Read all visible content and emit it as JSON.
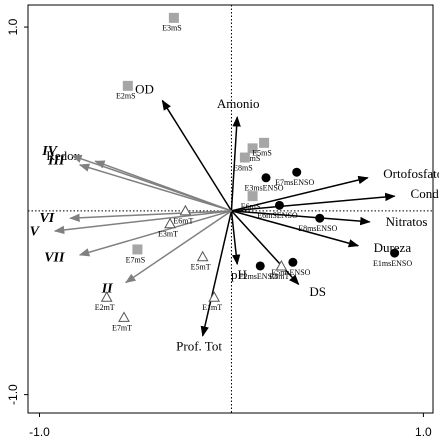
{
  "chart_data": {
    "type": "biplot",
    "xlim": [
      -1.06,
      1.05
    ],
    "ylim": [
      -1.1,
      1.12
    ],
    "xticks": [
      {
        "value": -1,
        "label": "-1.0"
      },
      {
        "value": 1,
        "label": "1.0"
      }
    ],
    "yticks": [
      {
        "value": -1,
        "label": "-1.0"
      },
      {
        "value": 1,
        "label": "1.0"
      }
    ],
    "series": [
      {
        "marker": "arrow",
        "color": "#000000",
        "font_style": "normal",
        "labels": [
          "OD",
          "Amonio",
          "Ortofosfatos",
          "Cond",
          "Nitratos",
          "Dureza",
          "DS",
          "pH",
          "Prof. Tot"
        ],
        "x": [
          -0.36,
          0.03,
          0.71,
          0.85,
          0.72,
          0.66,
          0.35,
          0.03,
          -0.15
        ],
        "values": [
          0.6,
          0.51,
          0.18,
          0.08,
          -0.06,
          -0.19,
          -0.4,
          -0.29,
          -0.68
        ]
      },
      {
        "marker": "arrow",
        "color": "#808080",
        "font_style": "normal",
        "labels": [
          "Redox"
        ],
        "x": [
          -0.71
        ],
        "values": [
          0.27
        ]
      },
      {
        "marker": "arrow",
        "color": "#808080",
        "font_style": "bold-italic",
        "labels": [
          "IV",
          "III",
          "VI",
          "V",
          "VII",
          "II"
        ],
        "x": [
          -0.83,
          -0.79,
          -0.84,
          -0.92,
          -0.79,
          -0.55
        ],
        "values": [
          0.3,
          0.25,
          -0.04,
          -0.11,
          -0.24,
          -0.39
        ]
      },
      {
        "marker": "square",
        "color": "#a6a6a6",
        "labels": [
          "E3mS",
          "E2mS",
          "E1mS",
          "E5mS",
          "E8mS",
          "E6mS",
          "E7mS"
        ],
        "x": [
          -0.3,
          -0.54,
          0.11,
          0.17,
          0.07,
          0.11,
          -0.49
        ],
        "values": [
          1.05,
          0.68,
          0.34,
          0.37,
          0.29,
          0.08,
          -0.21
        ]
      },
      {
        "marker": "circle",
        "color": "#000000",
        "labels": [
          "E7msENSO",
          "E3msENSO",
          "E6mSENSO",
          "E8msENSO",
          "E1msENSO",
          "E5msENSO",
          "E2msENSO"
        ],
        "x": [
          0.34,
          0.18,
          0.25,
          0.46,
          0.85,
          0.32,
          0.15
        ],
        "values": [
          0.21,
          0.18,
          0.03,
          -0.04,
          -0.23,
          -0.28,
          -0.3
        ]
      },
      {
        "marker": "triangle",
        "color": "#555555",
        "labels": [
          "E6mT",
          "E3mT",
          "E5mT",
          "E1mT",
          "E2mT",
          "E7mT",
          "E8mT"
        ],
        "x": [
          -0.24,
          -0.32,
          -0.15,
          -0.09,
          -0.65,
          -0.56,
          0.26
        ],
        "values": [
          0.0,
          -0.07,
          -0.25,
          -0.47,
          -0.47,
          -0.58,
          -0.3
        ]
      }
    ]
  }
}
